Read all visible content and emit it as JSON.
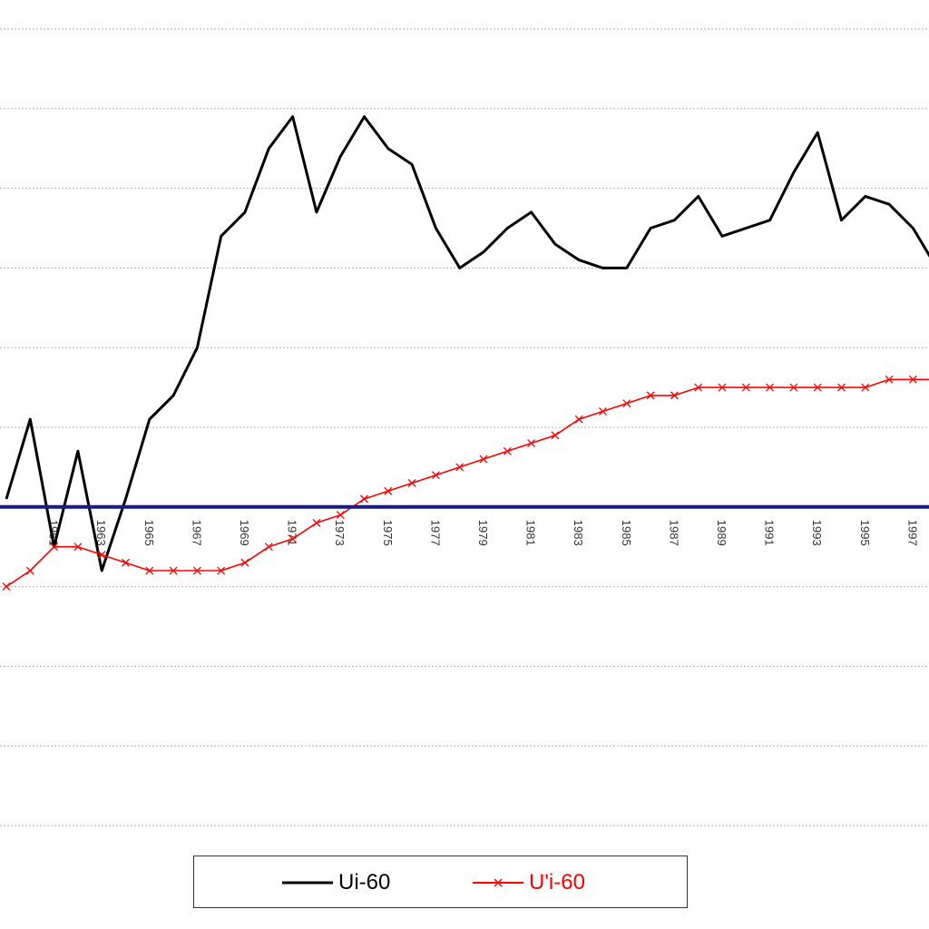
{
  "chart_data": {
    "type": "line",
    "title": "",
    "xlabel": "",
    "ylabel": "",
    "x": [
      1959,
      1960,
      1961,
      1962,
      1963,
      1964,
      1965,
      1966,
      1967,
      1968,
      1969,
      1970,
      1971,
      1972,
      1973,
      1974,
      1975,
      1976,
      1977,
      1978,
      1979,
      1980,
      1981,
      1982,
      1983,
      1984,
      1985,
      1986,
      1987,
      1988,
      1989,
      1990,
      1991,
      1992,
      1993,
      1994,
      1995,
      1996,
      1997,
      1998,
      1999
    ],
    "tick_labels": [
      "1961",
      "1963",
      "1965",
      "1967",
      "1969",
      "1971",
      "1973",
      "1975",
      "1977",
      "1979",
      "1981",
      "1983",
      "1985",
      "1987",
      "1989",
      "1991",
      "1993",
      "1995",
      "1997"
    ],
    "ylim": [
      -4,
      6
    ],
    "grid": true,
    "reference_line": {
      "y": 0,
      "color": "#1a1a8c"
    },
    "series": [
      {
        "name": "Ui-60",
        "color": "#000000",
        "marker": "none",
        "values": [
          0.1,
          1.1,
          -0.5,
          0.7,
          -0.8,
          0.1,
          1.1,
          1.4,
          2.0,
          3.4,
          3.7,
          4.5,
          4.9,
          3.7,
          4.4,
          4.9,
          4.5,
          4.3,
          3.5,
          3.0,
          3.2,
          3.5,
          3.7,
          3.3,
          3.1,
          3.0,
          3.0,
          3.5,
          3.6,
          3.9,
          3.4,
          3.5,
          3.6,
          4.2,
          4.7,
          3.6,
          3.9,
          3.8,
          3.5,
          3.0,
          3.0
        ]
      },
      {
        "name": "U'i-60",
        "color": "#ff0000",
        "marker": "x",
        "values": [
          -1.0,
          -0.8,
          -0.5,
          -0.5,
          -0.6,
          -0.7,
          -0.8,
          -0.8,
          -0.8,
          -0.8,
          -0.7,
          -0.5,
          -0.4,
          -0.2,
          -0.1,
          0.1,
          0.2,
          0.3,
          0.4,
          0.5,
          0.6,
          0.7,
          0.8,
          0.9,
          1.1,
          1.2,
          1.3,
          1.4,
          1.4,
          1.5,
          1.5,
          1.5,
          1.5,
          1.5,
          1.5,
          1.5,
          1.5,
          1.6,
          1.6,
          1.6,
          1.7
        ]
      }
    ],
    "legend": {
      "position": "bottom",
      "entries": [
        "Ui-60",
        "U'i-60"
      ]
    }
  }
}
